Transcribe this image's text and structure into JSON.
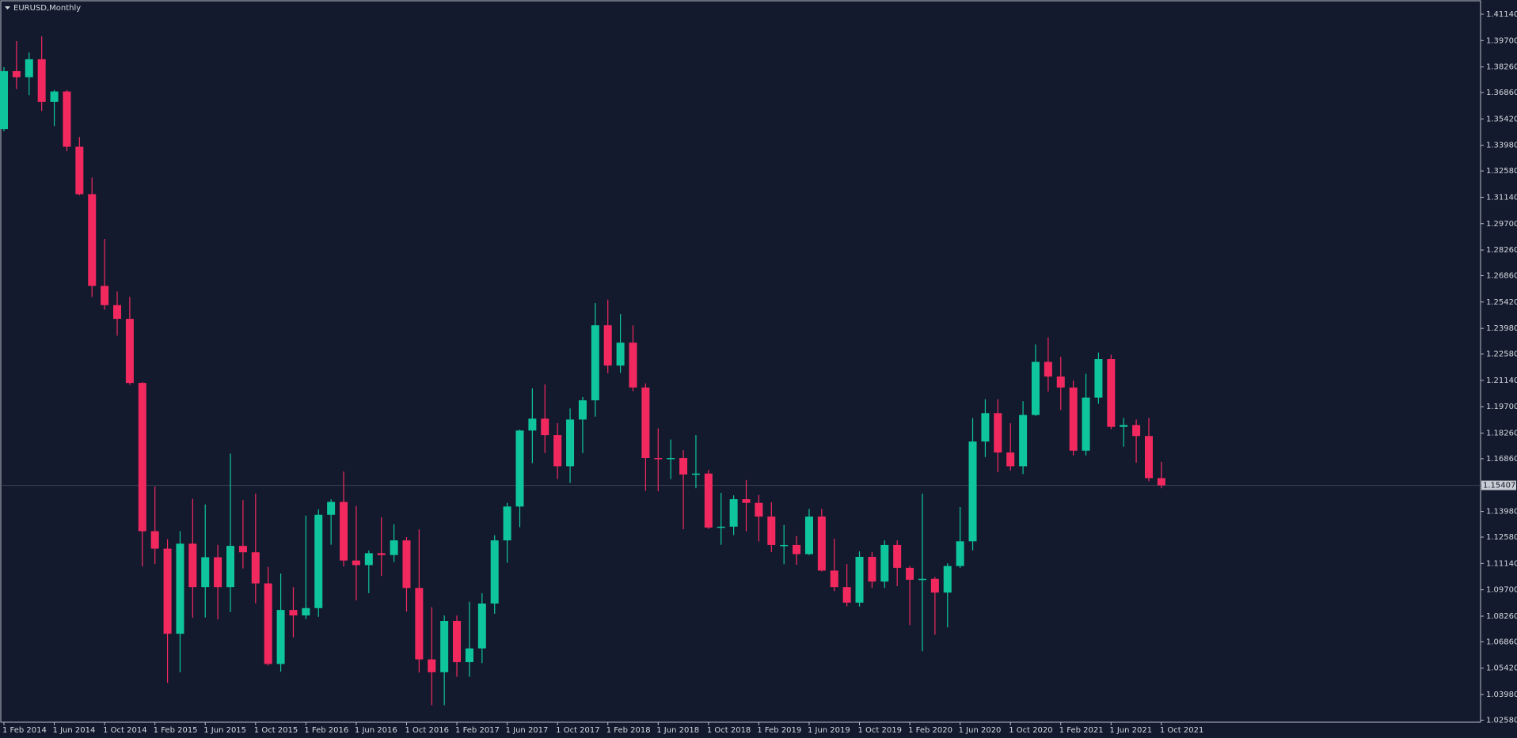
{
  "chart_data": {
    "type": "candlestick",
    "title": "EURUSD,Monthly",
    "last_price": 1.15407,
    "up_color": "#0fc69c",
    "down_color": "#f2295f",
    "categories": [
      "1 Feb 2014",
      null,
      null,
      null,
      "1 Jun 2014",
      null,
      null,
      null,
      "1 Oct 2014",
      null,
      null,
      null,
      "1 Feb 2015",
      null,
      null,
      null,
      "1 Jun 2015",
      null,
      null,
      null,
      "1 Oct 2015",
      null,
      null,
      null,
      "1 Feb 2016",
      null,
      null,
      null,
      "1 Jun 2016",
      null,
      null,
      null,
      "1 Oct 2016",
      null,
      null,
      null,
      "1 Feb 2017",
      null,
      null,
      null,
      "1 Jun 2017",
      null,
      null,
      null,
      "1 Oct 2017",
      null,
      null,
      null,
      "1 Feb 2018",
      null,
      null,
      null,
      "1 Jun 2018",
      null,
      null,
      null,
      "1 Oct 2018",
      null,
      null,
      null,
      "1 Feb 2019",
      null,
      null,
      null,
      "1 Jun 2019",
      null,
      null,
      null,
      "1 Oct 2019",
      null,
      null,
      null,
      "1 Feb 2020",
      null,
      null,
      null,
      "1 Jun 2020",
      null,
      null,
      null,
      "1 Oct 2020",
      null,
      null,
      null,
      "1 Feb 2021",
      null,
      null,
      null,
      "1 Jun 2021",
      null,
      null,
      null,
      "1 Oct 2021"
    ],
    "open": [
      1.3487,
      1.3803,
      1.377,
      1.3868,
      1.3635,
      1.3692,
      1.339,
      1.3131,
      1.263,
      1.2525,
      1.245,
      1.21,
      1.129,
      1.1195,
      1.073,
      1.1222,
      1.0985,
      1.1148,
      1.0985,
      1.121,
      1.1175,
      1.1005,
      1.0565,
      1.086,
      1.083,
      1.087,
      1.138,
      1.145,
      1.113,
      1.1105,
      1.117,
      1.116,
      1.124,
      1.098,
      1.059,
      1.052,
      1.08,
      1.0575,
      1.065,
      1.0895,
      1.124,
      1.1425,
      1.184,
      1.1905,
      1.1815,
      1.1645,
      1.19,
      1.2005,
      1.2415,
      1.2195,
      1.232,
      1.2075,
      1.169,
      1.1685,
      1.169,
      1.16,
      1.1605,
      1.131,
      1.1315,
      1.1465,
      1.1445,
      1.137,
      1.1215,
      1.1215,
      1.1165,
      1.137,
      1.1075,
      1.0985,
      1.09,
      1.115,
      1.1015,
      1.1215,
      1.109,
      1.1025,
      1.103,
      1.0955,
      1.11,
      1.1235,
      1.178,
      1.1935,
      1.172,
      1.1645,
      1.1925,
      1.2215,
      1.2135,
      1.2075,
      1.173,
      1.202,
      1.223,
      1.186,
      1.187,
      1.181,
      1.158
    ],
    "high": [
      1.3825,
      1.3967,
      1.3905,
      1.3993,
      1.37,
      1.37,
      1.3443,
      1.3222,
      1.2887,
      1.26,
      1.257,
      1.2105,
      1.1534,
      1.1246,
      1.129,
      1.1467,
      1.1436,
      1.1216,
      1.1714,
      1.146,
      1.1495,
      1.1095,
      1.1059,
      1.0985,
      1.1376,
      1.141,
      1.1464,
      1.1616,
      1.1428,
      1.1185,
      1.1366,
      1.1328,
      1.1258,
      1.13,
      1.0875,
      1.083,
      1.083,
      1.0905,
      1.0951,
      1.1268,
      1.1445,
      1.1845,
      1.207,
      1.2092,
      1.188,
      1.1961,
      1.2023,
      1.2537,
      1.2555,
      1.2476,
      1.2414,
      1.2098,
      1.1852,
      1.1791,
      1.1733,
      1.1815,
      1.1625,
      1.15,
      1.1486,
      1.157,
      1.1488,
      1.1448,
      1.1324,
      1.1264,
      1.1412,
      1.1412,
      1.125,
      1.111,
      1.118,
      1.1176,
      1.124,
      1.124,
      1.11,
      1.1495,
      1.104,
      1.1115,
      1.1422,
      1.1908,
      1.2011,
      1.2011,
      1.188,
      1.2,
      1.231,
      1.2349,
      1.2243,
      1.2113,
      1.215,
      1.2266,
      1.2254,
      1.1909,
      1.19,
      1.1909,
      1.1669
    ],
    "low": [
      1.3475,
      1.3705,
      1.3672,
      1.3585,
      1.3503,
      1.3366,
      1.3125,
      1.257,
      1.25,
      1.2358,
      1.209,
      1.1098,
      1.111,
      1.0462,
      1.052,
      1.0818,
      1.0819,
      1.0808,
      1.0848,
      1.1087,
      1.0896,
      1.0557,
      1.0523,
      1.071,
      1.081,
      1.0822,
      1.1216,
      1.1098,
      1.0912,
      1.0952,
      1.1045,
      1.1122,
      1.0851,
      1.0518,
      1.034,
      1.034,
      1.0495,
      1.0495,
      1.057,
      1.0839,
      1.1118,
      1.1312,
      1.1662,
      1.1717,
      1.1575,
      1.1554,
      1.1717,
      1.1916,
      1.2154,
      1.2155,
      1.2055,
      1.151,
      1.1508,
      1.1575,
      1.1301,
      1.1525,
      1.1302,
      1.1216,
      1.1269,
      1.129,
      1.1234,
      1.1176,
      1.111,
      1.1107,
      1.116,
      1.107,
      1.0963,
      1.088,
      1.0879,
      1.098,
      1.098,
      1.099,
      1.0777,
      1.0635,
      1.0725,
      1.0765,
      1.109,
      1.1185,
      1.1695,
      1.1612,
      1.1622,
      1.1602,
      1.192,
      1.2053,
      1.1952,
      1.1704,
      1.1704,
      1.1986,
      1.1847,
      1.1752,
      1.1664,
      1.1563,
      1.1525
    ],
    "close": [
      1.3803,
      1.377,
      1.3868,
      1.3635,
      1.3692,
      1.339,
      1.3131,
      1.263,
      1.2525,
      1.245,
      1.21,
      1.129,
      1.1195,
      1.073,
      1.1222,
      1.0985,
      1.1148,
      1.0985,
      1.121,
      1.1175,
      1.1005,
      1.0565,
      1.086,
      1.083,
      1.087,
      1.138,
      1.145,
      1.113,
      1.1105,
      1.117,
      1.116,
      1.124,
      1.098,
      1.059,
      1.052,
      1.08,
      1.0575,
      1.065,
      1.0895,
      1.124,
      1.1425,
      1.184,
      1.1905,
      1.1815,
      1.1645,
      1.19,
      1.2005,
      1.2415,
      1.2195,
      1.232,
      1.2075,
      1.169,
      1.1685,
      1.169,
      1.16,
      1.1605,
      1.131,
      1.1315,
      1.1465,
      1.1445,
      1.137,
      1.1215,
      1.1215,
      1.1165,
      1.137,
      1.1075,
      1.0985,
      1.09,
      1.115,
      1.1015,
      1.1215,
      1.109,
      1.1025,
      1.103,
      1.0955,
      1.11,
      1.1235,
      1.178,
      1.1935,
      1.172,
      1.1645,
      1.1925,
      1.2215,
      1.2135,
      1.2075,
      1.173,
      1.202,
      1.223,
      1.186,
      1.187,
      1.181,
      1.158,
      1.15407
    ],
    "ylim": [
      1.0247,
      1.4183
    ],
    "yticks": [
      {
        "value": 1.0258,
        "label": "1.02580"
      },
      {
        "value": 1.0398,
        "label": "1.03980"
      },
      {
        "value": 1.0542,
        "label": "1.05420"
      },
      {
        "value": 1.0686,
        "label": "1.06860"
      },
      {
        "value": 1.0826,
        "label": "1.08260"
      },
      {
        "value": 1.097,
        "label": "1.09700"
      },
      {
        "value": 1.1114,
        "label": "1.11140"
      },
      {
        "value": 1.1258,
        "label": "1.12580"
      },
      {
        "value": 1.1398,
        "label": "1.13980"
      },
      {
        "value": 1.1686,
        "label": "1.16860"
      },
      {
        "value": 1.1826,
        "label": "1.18260"
      },
      {
        "value": 1.197,
        "label": "1.19700"
      },
      {
        "value": 1.2114,
        "label": "1.21140"
      },
      {
        "value": 1.2258,
        "label": "1.22580"
      },
      {
        "value": 1.2398,
        "label": "1.23980"
      },
      {
        "value": 1.2542,
        "label": "1.25420"
      },
      {
        "value": 1.2686,
        "label": "1.26860"
      },
      {
        "value": 1.2826,
        "label": "1.28260"
      },
      {
        "value": 1.297,
        "label": "1.29700"
      },
      {
        "value": 1.3114,
        "label": "1.31140"
      },
      {
        "value": 1.3258,
        "label": "1.32580"
      },
      {
        "value": 1.3398,
        "label": "1.33980"
      },
      {
        "value": 1.3542,
        "label": "1.35420"
      },
      {
        "value": 1.3686,
        "label": "1.36860"
      },
      {
        "value": 1.3826,
        "label": "1.38260"
      },
      {
        "value": 1.397,
        "label": "1.39700"
      },
      {
        "value": 1.4114,
        "label": "1.41140"
      }
    ]
  }
}
